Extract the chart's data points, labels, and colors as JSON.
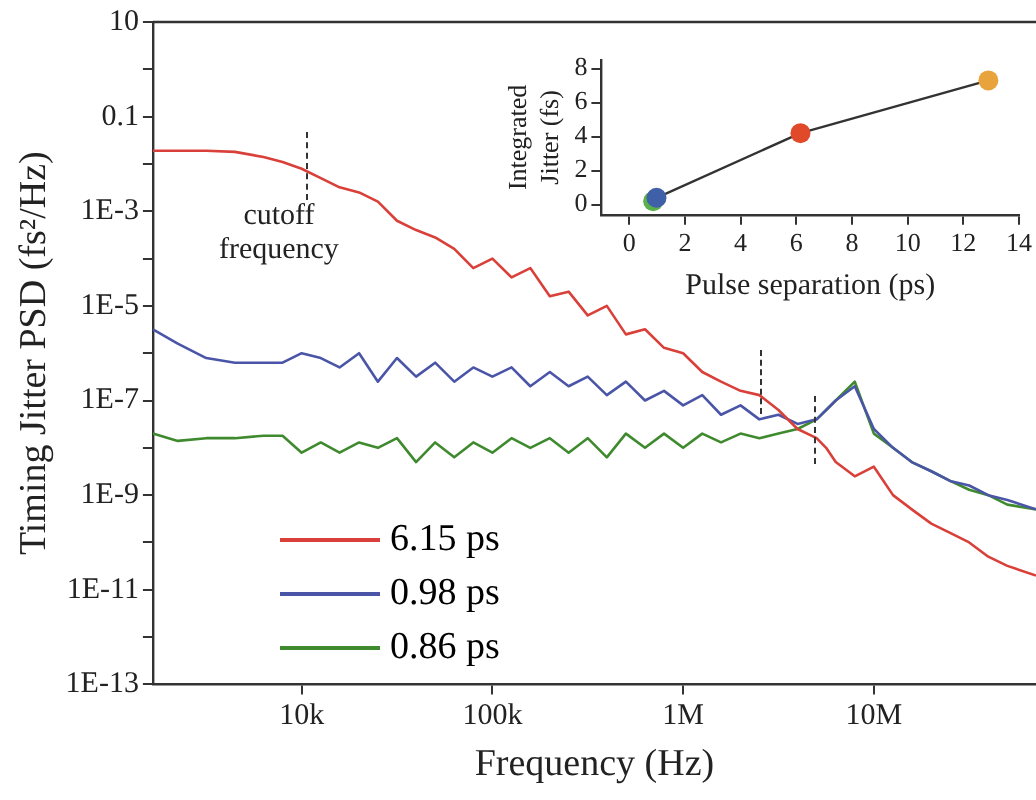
{
  "chart_data": [
    {
      "type": "line",
      "xlabel": "Frequency (Hz)",
      "ylabel": "Timing Jitter PSD (fs²/Hz)",
      "log": "xy",
      "legend": "bottom left",
      "grid": false,
      "marker": "none",
      "line_style": "solid",
      "x": [
        1660,
        2240,
        3160,
        4470,
        6310,
        7940,
        10000,
        12600,
        15800,
        20000,
        25100,
        31600,
        39800,
        50100,
        63100,
        79400,
        100000,
        126000,
        158000,
        200000,
        251000,
        316000,
        398000,
        501000,
        631000,
        794000,
        1000000,
        1260000,
        1580000,
        2000000,
        2510000,
        3160000,
        3980000,
        5010000,
        5620000,
        6310000,
        7940000,
        10000000,
        12600000,
        15800000,
        20000000,
        25100000,
        31600000,
        39800000,
        50100000,
        70800000
      ],
      "series": [
        {
          "name": "6.15 ps",
          "color": "#d9403a",
          "values": [
            0.019,
            0.019,
            0.019,
            0.018,
            0.014,
            0.011,
            0.0079,
            0.005,
            0.0032,
            0.0025,
            0.0016,
            0.00063,
            0.0004,
            0.00028,
            0.00016,
            6.3e-05,
            0.0001,
            4e-05,
            6.3e-05,
            1.6e-05,
            2e-05,
            6.3e-06,
            1e-05,
            2.5e-06,
            3.2e-06,
            1.3e-06,
            1e-06,
            4e-07,
            2.5e-07,
            1.6e-07,
            1.3e-07,
            6.3e-08,
            2.5e-08,
            1.6e-08,
            1e-08,
            5e-09,
            2.5e-09,
            4e-09,
            1e-09,
            5e-10,
            2.5e-10,
            1.6e-10,
            1e-10,
            5e-11,
            3.2e-11,
            2e-11
          ]
        },
        {
          "name": "0.98 ps",
          "color": "#4a55a8",
          "values": [
            3.2e-06,
            1.6e-06,
            7.9e-07,
            6.3e-07,
            6.3e-07,
            6.3e-07,
            1e-06,
            7.9e-07,
            5e-07,
            1e-06,
            2.5e-07,
            7.9e-07,
            3.2e-07,
            6.3e-07,
            2.5e-07,
            5e-07,
            3.2e-07,
            5e-07,
            2e-07,
            4e-07,
            2e-07,
            3.2e-07,
            1.3e-07,
            2.5e-07,
            1e-07,
            1.6e-07,
            7.9e-08,
            1.3e-07,
            5e-08,
            7.9e-08,
            4e-08,
            5e-08,
            3.2e-08,
            4e-08,
            6.3e-08,
            1e-07,
            2e-07,
            2.5e-08,
            1e-08,
            5e-09,
            3.2e-09,
            2e-09,
            1.6e-09,
            1e-09,
            7.9e-10,
            5e-10
          ]
        },
        {
          "name": "0.86 ps",
          "color": "#3f8a2e",
          "values": [
            2e-08,
            1.4e-08,
            1.6e-08,
            1.6e-08,
            1.8e-08,
            1.8e-08,
            7.9e-09,
            1.3e-08,
            7.9e-09,
            1.3e-08,
            1e-08,
            1.6e-08,
            5e-09,
            1.3e-08,
            6.3e-09,
            1.3e-08,
            7.9e-09,
            1.6e-08,
            1e-08,
            1.6e-08,
            7.9e-09,
            1.6e-08,
            6.3e-09,
            2e-08,
            1e-08,
            2e-08,
            1e-08,
            2e-08,
            1.3e-08,
            2e-08,
            1.6e-08,
            2e-08,
            2.5e-08,
            4e-08,
            6.3e-08,
            1e-07,
            2.5e-07,
            2e-08,
            1e-08,
            5e-09,
            3.2e-09,
            2e-09,
            1.3e-09,
            1e-09,
            6.3e-10,
            5e-10
          ]
        }
      ],
      "xlim": [
        1660,
        70800000
      ],
      "xticks": [
        {
          "value": 10000,
          "label": "10k"
        },
        {
          "value": 100000,
          "label": "100k"
        },
        {
          "value": 1000000,
          "label": "1M"
        },
        {
          "value": 10000000,
          "label": "10M"
        }
      ],
      "ylim": [
        1e-13,
        10
      ],
      "yticks": [
        {
          "value": 1e-13,
          "label": "1E-13"
        },
        {
          "value": 1e-12,
          "label": null
        },
        {
          "value": 1e-11,
          "label": "1E-11"
        },
        {
          "value": 1e-10,
          "label": null
        },
        {
          "value": 1e-09,
          "label": "1E-9"
        },
        {
          "value": 1e-08,
          "label": null
        },
        {
          "value": 1e-07,
          "label": "1E-7"
        },
        {
          "value": 1e-06,
          "label": null
        },
        {
          "value": 1e-05,
          "label": "1E-5"
        },
        {
          "value": 0.0001,
          "label": null
        },
        {
          "value": 0.001,
          "label": "1E-3"
        },
        {
          "value": 0.01,
          "label": null
        },
        {
          "value": 0.1,
          "label": "0.1"
        },
        {
          "value": 1,
          "label": null
        },
        {
          "value": 10,
          "label": "10"
        }
      ],
      "annotations": [
        "cutoff frequency"
      ]
    },
    {
      "type": "line",
      "xlabel": "Pulse separation (ps)",
      "ylabel": "Integrated Jitter (fs)",
      "marker": "circle",
      "grid": false,
      "x": [
        0.86,
        0.98,
        6.15,
        12.9
      ],
      "series": [
        {
          "color": "#333333",
          "values": [
            0.2,
            0.4,
            4.2,
            7.3
          ],
          "colors": [
            "#5bb04a",
            "#3f5fa8",
            "#e04a2a",
            "#e8a33d"
          ]
        }
      ],
      "xlim": [
        -1,
        14
      ],
      "xticks": [
        0,
        2,
        4,
        6,
        8,
        10,
        12,
        14
      ],
      "ylim": [
        -0.6,
        8.5
      ],
      "yticks": [
        0,
        2,
        4,
        6,
        8
      ]
    }
  ]
}
